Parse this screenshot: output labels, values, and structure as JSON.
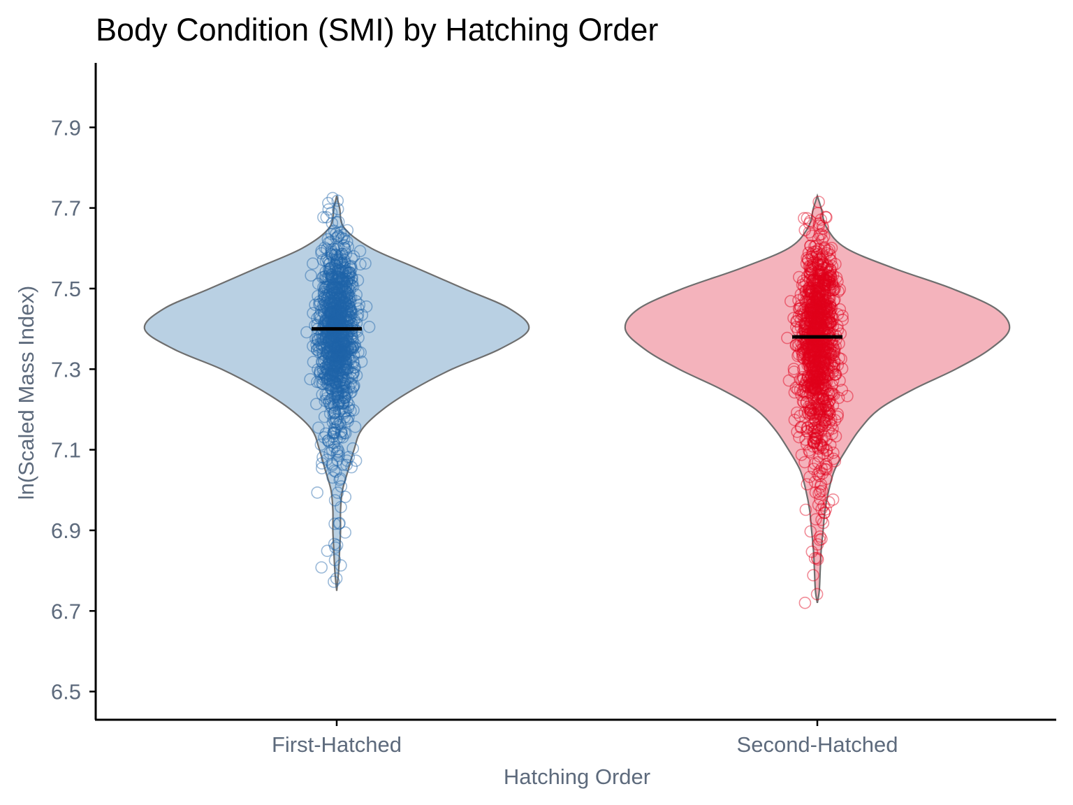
{
  "chart_data": {
    "type": "violin",
    "title": "Body Condition (SMI) by Hatching Order",
    "xlabel": "Hatching Order",
    "ylabel": "ln(Scaled Mass Index)",
    "ylim": [
      6.43,
      8.06
    ],
    "yticks": [
      "6.5",
      "6.7",
      "6.9",
      "7.1",
      "7.3",
      "7.5",
      "7.7",
      "7.9"
    ],
    "categories": [
      "First-Hatched",
      "Second-Hatched"
    ],
    "grid": false,
    "legend": "none",
    "series": [
      {
        "category": "First-Hatched",
        "fill_color": "#b9d0e3",
        "point_color": "#1f63a8",
        "median": 7.4,
        "min": 6.75,
        "max": 7.74,
        "density_profile": [
          [
            6.75,
            0.0
          ],
          [
            6.8,
            0.01
          ],
          [
            6.85,
            0.015
          ],
          [
            6.9,
            0.02
          ],
          [
            6.95,
            0.02
          ],
          [
            7.0,
            0.03
          ],
          [
            7.05,
            0.06
          ],
          [
            7.1,
            0.09
          ],
          [
            7.15,
            0.13
          ],
          [
            7.2,
            0.24
          ],
          [
            7.25,
            0.4
          ],
          [
            7.3,
            0.6
          ],
          [
            7.35,
            0.85
          ],
          [
            7.4,
            1.0
          ],
          [
            7.45,
            0.9
          ],
          [
            7.5,
            0.66
          ],
          [
            7.55,
            0.42
          ],
          [
            7.6,
            0.18
          ],
          [
            7.65,
            0.04
          ],
          [
            7.7,
            0.015
          ],
          [
            7.73,
            0.0
          ]
        ]
      },
      {
        "category": "Second-Hatched",
        "fill_color": "#f4b3bc",
        "point_color": "#e0001a",
        "median": 7.38,
        "min": 6.71,
        "max": 7.74,
        "density_profile": [
          [
            6.72,
            0.0
          ],
          [
            6.75,
            0.01
          ],
          [
            6.8,
            0.015
          ],
          [
            6.85,
            0.02
          ],
          [
            6.9,
            0.03
          ],
          [
            6.95,
            0.04
          ],
          [
            7.0,
            0.06
          ],
          [
            7.05,
            0.09
          ],
          [
            7.1,
            0.15
          ],
          [
            7.15,
            0.22
          ],
          [
            7.2,
            0.32
          ],
          [
            7.25,
            0.5
          ],
          [
            7.3,
            0.72
          ],
          [
            7.35,
            0.9
          ],
          [
            7.4,
            1.0
          ],
          [
            7.45,
            0.93
          ],
          [
            7.5,
            0.7
          ],
          [
            7.55,
            0.4
          ],
          [
            7.6,
            0.15
          ],
          [
            7.65,
            0.05
          ],
          [
            7.7,
            0.02
          ],
          [
            7.73,
            0.0
          ]
        ]
      }
    ]
  }
}
